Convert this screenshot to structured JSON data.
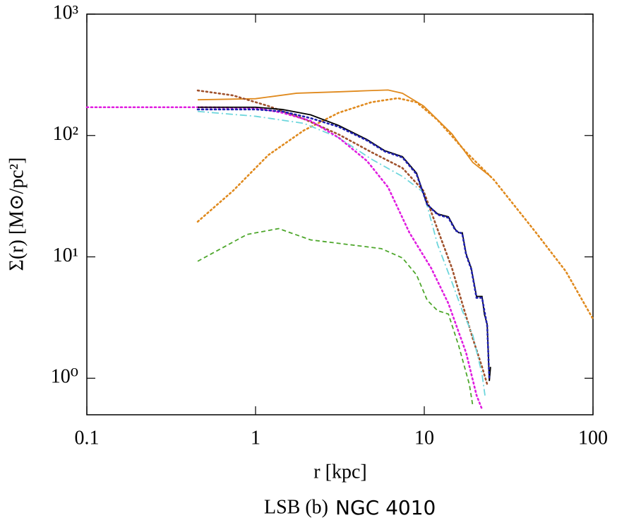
{
  "chart_data": {
    "type": "line",
    "title": "NGC 4010",
    "panel": "LSB (b)",
    "xlabel": "r [kpc]",
    "ylabel": "Σ(r) [M⊙/pc²]",
    "xscale": "log",
    "yscale": "log",
    "xlim": [
      0.1,
      100
    ],
    "ylim": [
      0.5,
      1000
    ],
    "xticks": [
      0.1,
      1,
      10,
      100
    ],
    "yticks": [
      {
        "value": 1,
        "label": "10⁰"
      },
      {
        "value": 10,
        "label": "10¹"
      },
      {
        "value": 100,
        "label": "10²"
      },
      {
        "value": 1000,
        "label": "10³"
      }
    ],
    "series": [
      {
        "color": "#4ea72c",
        "style": "dashed",
        "x": [
          0.454,
          0.89,
          1.37,
          2.12,
          3.78,
          5.56,
          7.42,
          9.0,
          10.4,
          12.0,
          13.9,
          16.0,
          18.5,
          19.4
        ],
        "values": [
          9.2,
          15.3,
          17.1,
          13.8,
          12.5,
          11.7,
          9.8,
          7.1,
          4.4,
          3.6,
          3.38,
          1.85,
          0.89,
          0.59
        ]
      },
      {
        "color": "#e08a1e",
        "style": "dotted",
        "x": [
          0.454,
          0.735,
          1.19,
          1.93,
          3.11,
          4.85,
          6.96,
          9.0,
          12.0,
          17.7,
          25.9,
          46,
          69,
          100
        ],
        "values": [
          19.5,
          35,
          69,
          110,
          154,
          188,
          203,
          188,
          134,
          73,
          43,
          15.8,
          7.6,
          3.08
        ]
      },
      {
        "color": "#e08a1e",
        "style": "solid",
        "x": [
          0.454,
          1,
          1.75,
          3.11,
          4.58,
          6.1,
          7.42,
          9.9,
          14.6,
          19.4,
          24.7
        ],
        "values": [
          197,
          201,
          223,
          229,
          234,
          237,
          223,
          175,
          103,
          60,
          46
        ]
      },
      {
        "color": "#a0522d",
        "style": "dotted",
        "x": [
          0.454,
          0.735,
          1.19,
          1.93,
          3.11,
          4.85,
          7.42,
          9.9,
          12.0,
          14.6,
          16.8,
          19.4,
          22.0,
          23.6
        ],
        "values": [
          235,
          214,
          175,
          137,
          102,
          73,
          54,
          35,
          16.8,
          8.06,
          4.13,
          2.12,
          1.24,
          0.89
        ]
      },
      {
        "color": "#6dd6dc",
        "style": "dashdot",
        "x": [
          0.454,
          1,
          1.93,
          3.11,
          4.85,
          7.42,
          9.9,
          12.0,
          14.6,
          16.8,
          19.4,
          22.0,
          22.9
        ],
        "values": [
          158,
          144,
          126,
          96,
          64,
          46,
          34,
          12.6,
          6.17,
          3.6,
          2.26,
          1.08,
          0.72
        ]
      },
      {
        "color": "#e01ee0",
        "style": "dotted",
        "x": [
          0.1,
          0.454,
          1,
          1.44,
          2.12,
          3.11,
          4.58,
          6.1,
          8.17,
          11.0,
          13.9,
          17.7,
          20.4,
          22.0
        ],
        "values": [
          171,
          171,
          169,
          154,
          132,
          96,
          61.6,
          37.5,
          15.8,
          8.06,
          4.13,
          1.62,
          0.725,
          0.555
        ]
      },
      {
        "color": "#000000",
        "style": "solid",
        "x": [
          0.454,
          1,
          1.44,
          2.12,
          3.11,
          4.58,
          5.83,
          7.42,
          9.0,
          10.4,
          12.0,
          13.9,
          15.3,
          16.0,
          16.8,
          17.7,
          19.0,
          20.4,
          22.0,
          22.7,
          23.6,
          24.3,
          24.7
        ],
        "values": [
          171,
          171,
          164,
          148,
          121,
          92.5,
          75,
          67,
          49,
          27,
          22.6,
          21.4,
          16.8,
          15.8,
          15.8,
          10.6,
          8.06,
          4.72,
          4.72,
          3.38,
          2.77,
          0.95,
          1.24
        ]
      },
      {
        "color": "#1f1fb0",
        "style": "dotted",
        "x": [
          0.454,
          1,
          1.44,
          2.12,
          3.11,
          4.58,
          5.83,
          7.42,
          9.0,
          10.4,
          12.0,
          13.9,
          15.3,
          16.8,
          17.7,
          19.0,
          20.4,
          22.0,
          23.6,
          24.3
        ],
        "values": [
          164,
          164,
          158,
          139,
          118,
          91,
          74,
          66,
          48,
          27,
          22.3,
          21.0,
          16.5,
          15.5,
          10.4,
          7.9,
          4.6,
          4.6,
          2.7,
          0.97
        ]
      }
    ]
  }
}
